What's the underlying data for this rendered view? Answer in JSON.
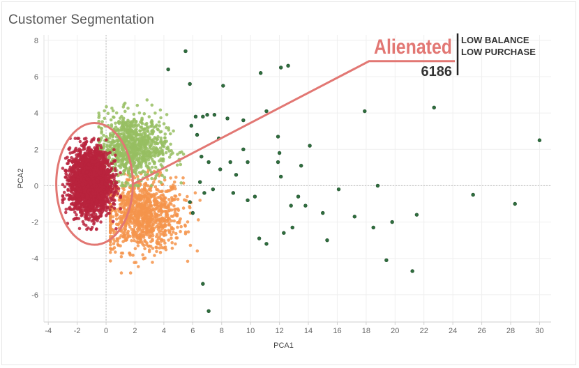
{
  "title": "Customer Segmentation",
  "chart_data": {
    "type": "scatter",
    "title": "Customer Segmentation",
    "xlabel": "PCA1",
    "ylabel": "PCA2",
    "xlim": [
      -4.3,
      30.8
    ],
    "ylim": [
      -7.5,
      8.3
    ],
    "xticks": [
      -4,
      -2,
      0,
      2,
      4,
      6,
      8,
      10,
      12,
      14,
      16,
      18,
      20,
      22,
      24,
      26,
      28,
      30
    ],
    "xtick_labels": [
      "-4",
      "-2",
      "0",
      "2",
      "4",
      "6",
      "8",
      "10",
      "12",
      "14",
      "16",
      "18",
      "20",
      "22",
      "24",
      "26",
      "28",
      "30"
    ],
    "yticks": [
      -6,
      -4,
      -2,
      0,
      2,
      4,
      6,
      8
    ],
    "ytick_labels": [
      "-6",
      "-4",
      "-2",
      "0",
      "2",
      "4",
      "6",
      "8"
    ],
    "grid": true,
    "zero_lines": true,
    "clusters": [
      {
        "color": "#f4944b",
        "count": 1000,
        "center": [
          2.5,
          -1.6
        ],
        "spread": [
          1.4,
          1.0
        ],
        "xrange": [
          0.3,
          6.5
        ],
        "yrange": [
          -4.8,
          2.0
        ]
      },
      {
        "color": "#97be62",
        "count": 900,
        "center": [
          1.8,
          2.1
        ],
        "spread": [
          1.2,
          0.9
        ],
        "xrange": [
          -0.5,
          5.8
        ],
        "yrange": [
          0.0,
          5.6
        ]
      },
      {
        "color": "#b8233d",
        "count": 2600,
        "center": [
          -1.1,
          0.2
        ],
        "spread": [
          0.7,
          0.85
        ],
        "xrange": [
          -3.0,
          1.0
        ],
        "yrange": [
          -2.4,
          2.6
        ]
      }
    ],
    "outliers": {
      "color": "#2f6e3e",
      "points": [
        [
          5.5,
          7.4
        ],
        [
          4.3,
          6.4
        ],
        [
          10.7,
          6.2
        ],
        [
          12.1,
          6.5
        ],
        [
          12.6,
          6.6
        ],
        [
          8.1,
          5.5
        ],
        [
          5.8,
          5.6
        ],
        [
          11.1,
          4.1
        ],
        [
          17.9,
          4.1
        ],
        [
          22.7,
          4.3
        ],
        [
          30.0,
          2.5
        ],
        [
          14.1,
          2.2
        ],
        [
          7.0,
          3.9
        ],
        [
          7.5,
          3.9
        ],
        [
          8.4,
          3.7
        ],
        [
          9.5,
          3.6
        ],
        [
          6.7,
          3.8
        ],
        [
          6.2,
          3.8
        ],
        [
          11.9,
          2.7
        ],
        [
          12.0,
          1.8
        ],
        [
          11.9,
          1.3
        ],
        [
          13.5,
          1.1
        ],
        [
          7.1,
          1.3
        ],
        [
          7.9,
          0.9
        ],
        [
          8.6,
          1.3
        ],
        [
          9.0,
          0.6
        ],
        [
          9.5,
          2.0
        ],
        [
          9.8,
          1.3
        ],
        [
          12.1,
          0.5
        ],
        [
          7.4,
          -0.2
        ],
        [
          8.8,
          -0.4
        ],
        [
          9.8,
          -0.8
        ],
        [
          10.3,
          -0.6
        ],
        [
          6.8,
          -0.4
        ],
        [
          6.5,
          0.2
        ],
        [
          16.1,
          -0.2
        ],
        [
          18.8,
          0.0
        ],
        [
          13.3,
          -0.6
        ],
        [
          12.8,
          -1.1
        ],
        [
          13.8,
          -1.1
        ],
        [
          15.0,
          -1.5
        ],
        [
          17.2,
          -1.7
        ],
        [
          18.5,
          -2.3
        ],
        [
          19.8,
          -2.0
        ],
        [
          21.5,
          -1.6
        ],
        [
          25.4,
          -0.5
        ],
        [
          28.3,
          -1.0
        ],
        [
          10.6,
          -2.9
        ],
        [
          11.1,
          -3.2
        ],
        [
          12.3,
          -2.6
        ],
        [
          12.9,
          -2.3
        ],
        [
          15.3,
          -3.0
        ],
        [
          19.4,
          -4.1
        ],
        [
          21.2,
          -4.7
        ],
        [
          6.7,
          -5.4
        ],
        [
          7.1,
          -6.9
        ],
        [
          6.0,
          -1.5
        ],
        [
          5.8,
          -0.9
        ],
        [
          6.3,
          2.8
        ],
        [
          5.9,
          3.3
        ],
        [
          7.8,
          2.6
        ],
        [
          6.6,
          1.6
        ]
      ]
    },
    "annotation": {
      "name": "Alienated",
      "traits": [
        "LOW BALANCE",
        "LOW PURCHASE"
      ],
      "count": "6186",
      "target_color": "#b8233d",
      "ellipse_color": "#e27773",
      "ellipse_center": [
        -0.8,
        0.1
      ],
      "ellipse_radii": [
        2.65,
        3.35
      ],
      "line_from": [
        1.9,
        0.1
      ],
      "line_to": [
        18.2,
        6.85
      ]
    }
  }
}
